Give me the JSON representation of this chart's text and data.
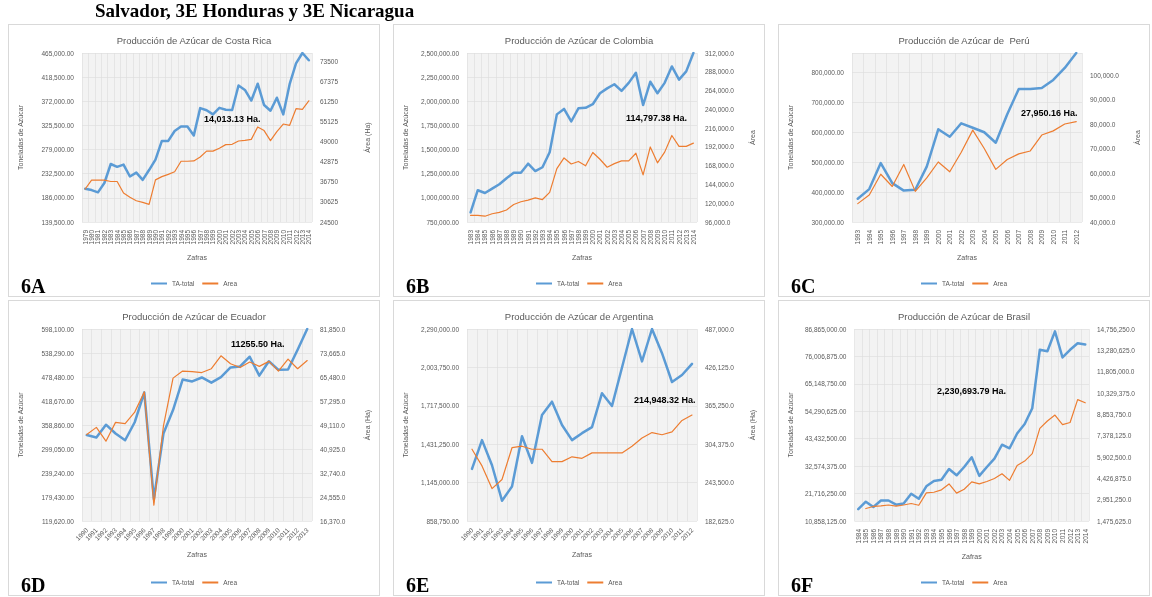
{
  "chart_data": [
    {
      "type": "line",
      "title": "Producción de Azúcar de Costa Rica",
      "xlabel": "Zafras",
      "ylabel": "Toneladas de Azúcar",
      "y2label": "Área (Ha)",
      "categories": [
        "1979",
        "1980",
        "1981",
        "1982",
        "1983",
        "1984",
        "1985",
        "1986",
        "1987",
        "1988",
        "1989",
        "1990",
        "1991",
        "1992",
        "1993",
        "1994",
        "1995",
        "1996",
        "1997",
        "1998",
        "1999",
        "2000",
        "2001",
        "2002",
        "2003",
        "2004",
        "2005",
        "2006",
        "2007",
        "2008",
        "2009",
        "2010",
        "2011",
        "2012",
        "2013",
        "2014"
      ],
      "series": [
        {
          "name": "TA-total",
          "color": "#5b9bd5",
          "values": [
            203600,
            201000,
            196600,
            214600,
            251200,
            245700,
            250000,
            227100,
            234600,
            220600,
            239600,
            259700,
            295700,
            295700,
            314800,
            323300,
            323300,
            306300,
            358800,
            354800,
            346800,
            359300,
            355800,
            355300,
            402400,
            393900,
            373400,
            405900,
            364800,
            353800,
            378900,
            346800,
            404900,
            444900,
            465000,
            451000
          ]
        },
        {
          "name": "Area",
          "color": "#ed7d31",
          "axis": "y2",
          "values": [
            34600,
            37300,
            37300,
            37300,
            36900,
            36900,
            33400,
            32100,
            31000,
            30500,
            29900,
            37400,
            38400,
            39100,
            39900,
            43100,
            43100,
            43200,
            44400,
            46200,
            46200,
            47100,
            48200,
            48300,
            49300,
            49500,
            49800,
            53600,
            52500,
            49400,
            52200,
            54500,
            54100,
            59200,
            59000,
            61600
          ]
        }
      ],
      "ylim": [
        139500,
        465000
      ],
      "yticks": [
        {
          "value": 139500,
          "label": "139,500.00"
        },
        {
          "value": 186000,
          "label": "186,000.00"
        },
        {
          "value": 232500,
          "label": "232,500.00"
        },
        {
          "value": 279000,
          "label": "279,000.00"
        },
        {
          "value": 325500,
          "label": "325,500.00"
        },
        {
          "value": 372000,
          "label": "372,000.00"
        },
        {
          "value": 418500,
          "label": "418,500.00"
        },
        {
          "value": 465000,
          "label": "465,000.00"
        }
      ],
      "y2lim": [
        24500,
        76250
      ],
      "y2ticks": [
        24500,
        30625,
        36750,
        42875,
        49000,
        55125,
        61250,
        67375,
        73500
      ],
      "annotations": [
        "6A",
        "14,013.13 Ha.",
        "Salvador, 3E Honduras y 3E Nicaragua"
      ],
      "grid": true,
      "legend": "bottom",
      "marker": "none",
      "line_style": "solid"
    },
    {
      "type": "line",
      "title": "Producción de Azúcar de Colombia",
      "xlabel": "Zafras",
      "ylabel": "Toneladas de Azúcar",
      "y2label": "Área",
      "categories": [
        "1983",
        "1984",
        "1985",
        "1986",
        "1987",
        "1988",
        "1989",
        "1990",
        "1991",
        "1992",
        "1993",
        "1994",
        "1995",
        "1996",
        "1997",
        "1998",
        "1999",
        "2000",
        "2001",
        "2002",
        "2003",
        "2004",
        "2005",
        "2006",
        "2007",
        "2008",
        "2009",
        "2010",
        "2011",
        "2012",
        "2013",
        "2014"
      ],
      "series": [
        {
          "name": "TA-total",
          "color": "#5b9bd5",
          "values": [
            849300,
            1079000,
            1050600,
            1096000,
            1141000,
            1203800,
            1260500,
            1260500,
            1354000,
            1277500,
            1317000,
            1473000,
            1864500,
            1921000,
            1790800,
            1927000,
            1932600,
            1969500,
            2082900,
            2134000,
            2176500,
            2108500,
            2190700,
            2295600,
            1961000,
            2202000,
            2082900,
            2190700,
            2361000,
            2224700,
            2309800,
            2500000
          ]
        },
        {
          "name": "Area",
          "color": "#ed7d31",
          "axis": "y2",
          "values": [
            104400,
            104400,
            103400,
            106500,
            108300,
            111400,
            118400,
            121900,
            124000,
            126800,
            124700,
            133800,
            164300,
            177900,
            170200,
            173400,
            167800,
            184900,
            176200,
            166000,
            170600,
            174100,
            174100,
            183900,
            156200,
            191900,
            171600,
            185300,
            206600,
            192600,
            192600,
            196800
          ]
        }
      ],
      "ylim": [
        750000,
        2500000
      ],
      "yticks": [
        {
          "value": 750000,
          "label": "750,000.00"
        },
        {
          "value": 1000000,
          "label": "1,000,000.00"
        },
        {
          "value": 1250000,
          "label": "1,250,000.00"
        },
        {
          "value": 1500000,
          "label": "1,500,000.00"
        },
        {
          "value": 1750000,
          "label": "1,750,000.00"
        },
        {
          "value": 2000000,
          "label": "2,000,000.00"
        },
        {
          "value": 2250000,
          "label": "2,250,000.00"
        },
        {
          "value": 2500000,
          "label": "2,500,000.00"
        }
      ],
      "y2lim": [
        96000,
        312000
      ],
      "y2ticks": [
        {
          "value": 96000,
          "label": "96,000.0"
        },
        {
          "value": 120000,
          "label": "120,000.0"
        },
        {
          "value": 144000,
          "label": "144,000.0"
        },
        {
          "value": 168000,
          "label": "168,000.0"
        },
        {
          "value": 192000,
          "label": "192,000.0"
        },
        {
          "value": 216000,
          "label": "216,000.0"
        },
        {
          "value": 240000,
          "label": "240,000.0"
        },
        {
          "value": 264000,
          "label": "264,000.0"
        },
        {
          "value": 288000,
          "label": "288,000.0"
        },
        {
          "value": 312000,
          "label": "312,000.0"
        }
      ],
      "annotations": [
        "6B",
        "114,797.38 Ha."
      ],
      "grid": true,
      "legend": "bottom",
      "marker": "none",
      "line_style": "solid"
    },
    {
      "type": "line",
      "title": "Producción de Azúcar de  Perú",
      "xlabel": "Zafras",
      "ylabel": "Toneladas de Azúcar",
      "y2label": "Área",
      "categories": [
        "1993",
        "1994",
        "1995",
        "1996",
        "1997",
        "1998",
        "1999",
        "2000",
        "2001",
        "2002",
        "2003",
        "2004",
        "2005",
        "2006",
        "2007",
        "2008",
        "2009",
        "2010",
        "2011",
        "2012"
      ],
      "series": [
        {
          "name": "TA-total",
          "color": "#5b9bd5",
          "values": [
            378000,
            410000,
            497000,
            430000,
            405000,
            408000,
            485000,
            610000,
            585000,
            630000,
            615000,
            600000,
            565000,
            660000,
            745000,
            745000,
            748000,
            775000,
            815000,
            865000
          ]
        },
        {
          "name": "Area",
          "color": "#ed7d31",
          "axis": "y2",
          "values": [
            47500,
            51000,
            59500,
            54500,
            63500,
            52500,
            58000,
            64500,
            60500,
            68500,
            77500,
            70000,
            61500,
            65500,
            67800,
            69000,
            75500,
            77200,
            80000,
            81000
          ]
        }
      ],
      "ylim": [
        300000,
        865000
      ],
      "yticks": [
        {
          "value": 300000,
          "label": "300,000.00"
        },
        {
          "value": 400000,
          "label": "400,000.00"
        },
        {
          "value": 500000,
          "label": "500,000.00"
        },
        {
          "value": 600000,
          "label": "600,000.00"
        },
        {
          "value": 700000,
          "label": "700,000.00"
        },
        {
          "value": 800000,
          "label": "800,000.00"
        }
      ],
      "y2lim": [
        40000,
        109000
      ],
      "y2ticks": [
        {
          "value": 40000,
          "label": "40,000.0"
        },
        {
          "value": 50000,
          "label": "50,000.0"
        },
        {
          "value": 60000,
          "label": "60,000.0"
        },
        {
          "value": 70000,
          "label": "70,000.0"
        },
        {
          "value": 80000,
          "label": "80,000.0"
        },
        {
          "value": 90000,
          "label": "90,000.0"
        },
        {
          "value": 100000,
          "label": "100,000.0"
        }
      ],
      "annotations": [
        "6C",
        "27,950.16 Ha."
      ],
      "grid": true,
      "legend": "bottom",
      "marker": "none",
      "line_style": "solid"
    },
    {
      "type": "line",
      "title": "Producción de Azúcar de Ecuador",
      "xlabel": "Zafras",
      "ylabel": "Toneladas de Azúcar",
      "y2label": "Área (Ha)",
      "categories": [
        "1990",
        "1991",
        "1992",
        "1993",
        "1994",
        "1995",
        "1996",
        "1997",
        "1998",
        "1999",
        "2000",
        "2001",
        "2002",
        "2003",
        "2004",
        "2005",
        "2006",
        "2007",
        "2008",
        "2009",
        "2010",
        "2011",
        "2012",
        "2013"
      ],
      "series": [
        {
          "name": "TA-total",
          "color": "#5b9bd5",
          "values": [
            333800,
            327700,
            359600,
            337600,
            320900,
            365700,
            440100,
            174300,
            337600,
            396100,
            472000,
            467500,
            477300,
            464400,
            478100,
            502400,
            504700,
            529000,
            481900,
            517600,
            496300,
            497100,
            546500,
            598100
          ]
        },
        {
          "name": "Area",
          "color": "#ed7d31",
          "axis": "y2",
          "values": [
            45900,
            48300,
            43600,
            50000,
            49600,
            53500,
            60400,
            21800,
            48800,
            65100,
            67500,
            67300,
            67000,
            68300,
            72700,
            70000,
            68700,
            70600,
            69100,
            70800,
            67500,
            71600,
            68300,
            71100
          ]
        }
      ],
      "ylim": [
        119620,
        598100
      ],
      "yticks": [
        {
          "value": 119620,
          "label": "119,620.00"
        },
        {
          "value": 179430,
          "label": "179,430.00"
        },
        {
          "value": 239240,
          "label": "239,240.00"
        },
        {
          "value": 299050,
          "label": "299,050.00"
        },
        {
          "value": 358860,
          "label": "358,860.00"
        },
        {
          "value": 418670,
          "label": "418,670.00"
        },
        {
          "value": 478480,
          "label": "478,480.00"
        },
        {
          "value": 538290,
          "label": "538,290.00"
        },
        {
          "value": 598100,
          "label": "598,100.00"
        }
      ],
      "y2lim": [
        16370,
        81850
      ],
      "y2ticks": [
        {
          "value": 16370,
          "label": "16,370.0"
        },
        {
          "value": 24555,
          "label": "24,555.0"
        },
        {
          "value": 32740,
          "label": "32,740.0"
        },
        {
          "value": 40925,
          "label": "40,925.0"
        },
        {
          "value": 49110,
          "label": "49,110.0"
        },
        {
          "value": 57295,
          "label": "57,295.0"
        },
        {
          "value": 65480,
          "label": "65,480.0"
        },
        {
          "value": 73665,
          "label": "73,665.0"
        },
        {
          "value": 81850,
          "label": "81,850.0"
        }
      ],
      "annotations": [
        "6D",
        "11255.50 Ha."
      ],
      "grid": true,
      "legend": "bottom",
      "marker": "none",
      "line_style": "solid"
    },
    {
      "type": "line",
      "title": "Producción de Azúcar de Argentina",
      "xlabel": "Zafras",
      "ylabel": "Toneladas de Azúcar",
      "y2label": "Área (Ha)",
      "categories": [
        "1990",
        "1991",
        "1992",
        "1993",
        "1994",
        "1995",
        "1996",
        "1997",
        "1998",
        "1999",
        "2000",
        "2001",
        "2002",
        "2003",
        "2004",
        "2005",
        "2006",
        "2007",
        "2008",
        "2009",
        "2010",
        "2011",
        "2012"
      ],
      "series": [
        {
          "name": "TA-total",
          "color": "#5b9bd5",
          "values": [
            1247000,
            1461500,
            1274100,
            1010000,
            1116000,
            1490800,
            1292200,
            1648900,
            1748200,
            1574400,
            1461500,
            1513400,
            1558600,
            1811400,
            1716600,
            2003300,
            2290000,
            2048500,
            2290000,
            2109500,
            1895000,
            1947000,
            2030500
          ]
        },
        {
          "name": "Area",
          "color": "#ed7d31",
          "axis": "y2",
          "values": [
            296400,
            270000,
            234000,
            248400,
            298800,
            301200,
            296400,
            296400,
            276700,
            276700,
            284400,
            282000,
            290600,
            290600,
            290600,
            290600,
            301200,
            314200,
            322800,
            319400,
            323800,
            342000,
            350600
          ]
        }
      ],
      "ylim": [
        858750,
        2290000
      ],
      "yticks": [
        {
          "value": 858750,
          "label": "858,750.00"
        },
        {
          "value": 1145000,
          "label": "1,145,000.00"
        },
        {
          "value": 1431250,
          "label": "1,431,250.00"
        },
        {
          "value": 1717500,
          "label": "1,717,500.00"
        },
        {
          "value": 2003750,
          "label": "2,003,750.00"
        },
        {
          "value": 2290000,
          "label": "2,290,000.00"
        }
      ],
      "y2lim": [
        182625,
        487000
      ],
      "y2ticks": [
        {
          "value": 182625,
          "label": "182,625.0"
        },
        {
          "value": 243500,
          "label": "243,500.0"
        },
        {
          "value": 304375,
          "label": "304,375.0"
        },
        {
          "value": 365250,
          "label": "365,250.0"
        },
        {
          "value": 426125,
          "label": "426,125.0"
        },
        {
          "value": 487000,
          "label": "487,000.0"
        }
      ],
      "annotations": [
        "6E",
        "214,948.32 Ha."
      ],
      "grid": true,
      "legend": "bottom",
      "marker": "none",
      "line_style": "solid"
    },
    {
      "type": "line",
      "title": "Producción de Azúcar de Brasil",
      "xlabel": "Zafras",
      "ylabel": "Toneladas de Azúcar",
      "categories": [
        "1984",
        "1985",
        "1986",
        "1987",
        "1988",
        "1989",
        "1990",
        "1991",
        "1992",
        "1993",
        "1994",
        "1995",
        "1996",
        "1997",
        "1998",
        "1999",
        "2000",
        "2001",
        "2002",
        "2003",
        "2004",
        "2005",
        "2006",
        "2007",
        "2008",
        "2009",
        "2010",
        "2011",
        "2012",
        "2013",
        "2014"
      ],
      "series": [
        {
          "name": "TA-total",
          "color": "#5b9bd5",
          "values": [
            15557000,
            18494000,
            16380000,
            18964000,
            18964000,
            17320000,
            17790000,
            21666000,
            19669000,
            24603000,
            26717000,
            27187000,
            31416000,
            28949000,
            32238000,
            36115000,
            28714000,
            32238000,
            35528000,
            41049000,
            39640000,
            45513000,
            49272000,
            55498000,
            78641000,
            78054000,
            85924000,
            75586000,
            78641000,
            81225000,
            80755000
          ]
        },
        {
          "name": "Area",
          "color": "#ed7d31",
          "axis": "y2",
          "values": [
            null,
            2337700,
            2481400,
            2522000,
            2584000,
            2502000,
            2584000,
            2687000,
            2563000,
            3425000,
            3466000,
            3631000,
            4041000,
            3405000,
            3672000,
            4185000,
            4041000,
            4206000,
            4411000,
            4740000,
            4288000,
            5314000,
            5622000,
            6135000,
            7880000,
            8393000,
            8804000,
            8147000,
            8291000,
            9871000,
            9650000
          ]
        }
      ],
      "ylim": [
        10858125,
        86865000
      ],
      "yticks": [
        {
          "value": 10858125,
          "label": "10,858,125.00"
        },
        {
          "value": 21716250,
          "label": "21,716,250.00"
        },
        {
          "value": 32574375,
          "label": "32,574,375.00"
        },
        {
          "value": 43432500,
          "label": "43,432,500.00"
        },
        {
          "value": 54290625,
          "label": "54,290,625.00"
        },
        {
          "value": 65148750,
          "label": "65,148,750.00"
        },
        {
          "value": 76006875,
          "label": "76,006,875.00"
        },
        {
          "value": 86865000,
          "label": "86,865,000.00"
        }
      ],
      "y2lim": [
        1475625,
        14756250
      ],
      "y2ticks": [
        {
          "value": 1475625,
          "label": "1,475,625.0"
        },
        {
          "value": 2951250,
          "label": "2,951,250.0"
        },
        {
          "value": 4426875,
          "label": "4,426,875.0"
        },
        {
          "value": 5902500,
          "label": "5,902,500.0"
        },
        {
          "value": 7378125,
          "label": "7,378,125.0"
        },
        {
          "value": 8853750,
          "label": "8,853,750.0"
        },
        {
          "value": 10329375,
          "label": "10,329,375.0"
        },
        {
          "value": 11805000,
          "label": "11,805,000.0"
        },
        {
          "value": 13280625,
          "label": "13,280,625.0"
        },
        {
          "value": 14756250,
          "label": "14,756,250.0"
        }
      ],
      "annotations": [
        "6F",
        "2,230,693.79 Ha."
      ],
      "grid": true,
      "legend": "bottom",
      "marker": "none",
      "line_style": "solid"
    }
  ]
}
